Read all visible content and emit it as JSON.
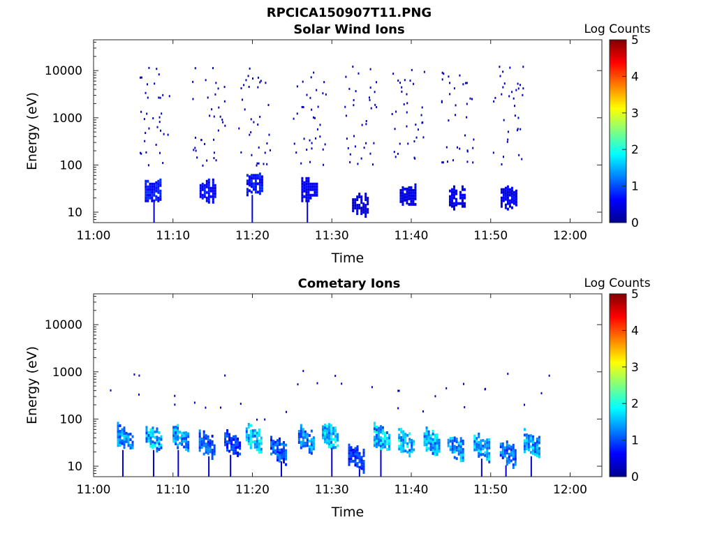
{
  "figure": {
    "title": "RPCICA150907T11.PNG"
  },
  "chart_data": [
    {
      "type": "heatmap",
      "title": "Solar Wind Ions",
      "xlabel": "Time",
      "ylabel": "Energy (eV)",
      "y_scale": "log",
      "xlim": [
        "11:00",
        "12:04"
      ],
      "ylim": [
        6,
        45000
      ],
      "x_ticks": [
        "11:00",
        "11:10",
        "11:20",
        "11:30",
        "11:40",
        "11:50",
        "12:00"
      ],
      "y_ticks": [
        "10",
        "100",
        "1000",
        "10000"
      ],
      "colorbar": {
        "label": "Log Counts",
        "min": 0,
        "max": 5,
        "ticks": [
          "0",
          "1",
          "2",
          "3",
          "4",
          "5"
        ],
        "colormap": "jet"
      },
      "bursts": [
        {
          "time_min": 7.5,
          "energy_eV": 28,
          "log_counts": 0.8
        },
        {
          "time_min": 14.4,
          "energy_eV": 28,
          "log_counts": 0.7
        },
        {
          "time_min": 20.3,
          "energy_eV": 40,
          "log_counts": 0.8
        },
        {
          "time_min": 27.2,
          "energy_eV": 30,
          "log_counts": 0.6
        },
        {
          "time_min": 33.6,
          "energy_eV": 14,
          "log_counts": 0.5
        },
        {
          "time_min": 39.6,
          "energy_eV": 22,
          "log_counts": 0.6
        },
        {
          "time_min": 45.8,
          "energy_eV": 20,
          "log_counts": 0.6
        },
        {
          "time_min": 52.3,
          "energy_eV": 20,
          "log_counts": 0.6
        }
      ],
      "scatter_range_eV": [
        100,
        13000
      ],
      "scatter_level": 0.3
    },
    {
      "type": "heatmap",
      "title": "Cometary Ions",
      "xlabel": "Time",
      "ylabel": "Energy (eV)",
      "y_scale": "log",
      "xlim": [
        "11:00",
        "12:04"
      ],
      "ylim": [
        6,
        45000
      ],
      "x_ticks": [
        "11:00",
        "11:10",
        "11:20",
        "11:30",
        "11:40",
        "11:50",
        "12:00"
      ],
      "y_ticks": [
        "10",
        "100",
        "1000",
        "10000"
      ],
      "colorbar": {
        "label": "Log Counts",
        "min": 0,
        "max": 5,
        "ticks": [
          "0",
          "1",
          "2",
          "3",
          "4",
          "5"
        ],
        "colormap": "jet"
      },
      "bursts": [
        {
          "time_min": 4.0,
          "energy_eV": 38,
          "log_counts": 1.5
        },
        {
          "time_min": 7.6,
          "energy_eV": 38,
          "log_counts": 1.7
        },
        {
          "time_min": 11.0,
          "energy_eV": 38,
          "log_counts": 1.6
        },
        {
          "time_min": 14.3,
          "energy_eV": 28,
          "log_counts": 1.2
        },
        {
          "time_min": 17.5,
          "energy_eV": 30,
          "log_counts": 1.0
        },
        {
          "time_min": 20.2,
          "energy_eV": 38,
          "log_counts": 1.8
        },
        {
          "time_min": 23.3,
          "energy_eV": 22,
          "log_counts": 1.2
        },
        {
          "time_min": 26.8,
          "energy_eV": 36,
          "log_counts": 1.5
        },
        {
          "time_min": 29.8,
          "energy_eV": 42,
          "log_counts": 1.9
        },
        {
          "time_min": 33.1,
          "energy_eV": 15,
          "log_counts": 1.0
        },
        {
          "time_min": 36.3,
          "energy_eV": 38,
          "log_counts": 1.8
        },
        {
          "time_min": 39.4,
          "energy_eV": 30,
          "log_counts": 1.8
        },
        {
          "time_min": 42.6,
          "energy_eV": 32,
          "log_counts": 1.7
        },
        {
          "time_min": 45.6,
          "energy_eV": 25,
          "log_counts": 1.6
        },
        {
          "time_min": 48.9,
          "energy_eV": 25,
          "log_counts": 1.7
        },
        {
          "time_min": 52.2,
          "energy_eV": 18,
          "log_counts": 1.3
        },
        {
          "time_min": 55.2,
          "energy_eV": 28,
          "log_counts": 1.6
        }
      ],
      "scatter_range_eV": [
        100,
        1200
      ],
      "scatter_level": 0.3
    }
  ]
}
